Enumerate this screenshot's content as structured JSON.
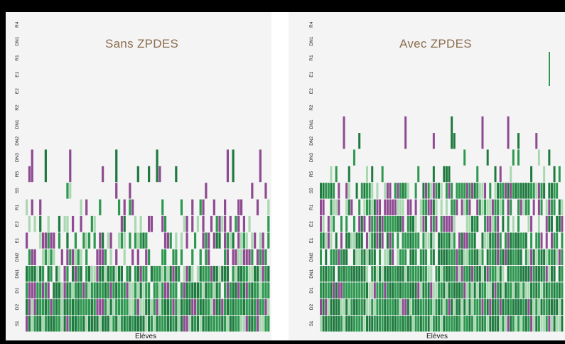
{
  "chart_data": [
    {
      "type": "heatmap",
      "title": "Sans ZPDES",
      "xlabel": "Elèves",
      "ylabel": "",
      "y_levels": [
        "S1",
        "D2",
        "D1",
        "DN1",
        "DN2",
        "E1",
        "E2",
        "R1",
        "S5",
        "R5",
        "DN3",
        "DN2",
        "DN1",
        "R2",
        "E2",
        "E1",
        "R1",
        "DN1",
        "R4"
      ],
      "legend": "none",
      "colors": {
        "mastered_dark": "#1f7a3f",
        "mastered": "#2e9850",
        "partial": "#a9d8b1",
        "struggle": "#8e4b91",
        "background": "#f4f4f4"
      },
      "students": 90,
      "fill_profile": [
        1.0,
        1.0,
        0.97,
        0.9,
        0.55,
        0.55,
        0.3,
        0.25,
        0.1,
        0.0,
        0.0,
        0.0,
        0.0,
        0.0,
        0.0,
        0.0,
        0.0,
        0.0,
        0.0
      ],
      "purple_share": [
        0.05,
        0.12,
        0.25,
        0.12,
        0.45,
        0.3,
        0.4,
        0.5,
        0.6,
        0.0,
        0.0,
        0.0,
        0.0,
        0.0,
        0.0,
        0.0,
        0.0,
        0.0,
        0.0
      ]
    },
    {
      "type": "heatmap",
      "title": "Avec ZPDES",
      "xlabel": "Elèves",
      "ylabel": "",
      "y_levels": [
        "S1",
        "D2",
        "D1",
        "DN1",
        "DN2",
        "E1",
        "E2",
        "R1",
        "S5",
        "R5",
        "DN3",
        "DN2",
        "DN1",
        "R2",
        "E2",
        "E1",
        "R1",
        "DN1",
        "R4"
      ],
      "legend": "none",
      "colors": {
        "mastered_dark": "#1f7a3f",
        "mastered": "#2e9850",
        "partial": "#a9d8b1",
        "struggle": "#8e4b91",
        "background": "#f4f4f4"
      },
      "students": 95,
      "fill_profile": [
        1.0,
        1.0,
        1.0,
        0.97,
        0.9,
        0.75,
        0.7,
        0.75,
        0.8,
        0.25,
        0.05,
        0.0,
        0.0,
        0.0,
        0.0,
        0.0,
        0.0,
        0.0,
        0.0
      ],
      "purple_share": [
        0.03,
        0.06,
        0.12,
        0.08,
        0.08,
        0.18,
        0.25,
        0.4,
        0.2,
        0.05,
        0.0,
        0.0,
        0.0,
        0.0,
        0.0,
        0.0,
        0.0,
        0.0,
        0.0
      ]
    }
  ]
}
